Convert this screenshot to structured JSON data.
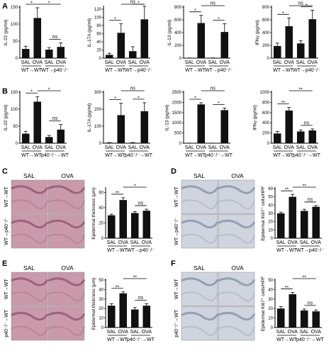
{
  "colors": {
    "bar": "#111111",
    "axis": "#000000",
    "tissue_he": "#c99aaa",
    "tissue_ihc": "#cfd4de"
  },
  "charts": [
    {
      "id": "a1",
      "panel": "A",
      "ylabel": "IL-22 (pg/ml)",
      "yticks": [
        "0",
        "50",
        "100",
        "150"
      ],
      "ymax": 150,
      "categories": [
        "SAL",
        "OVA",
        "SAL",
        "OVA"
      ],
      "values": [
        27,
        118,
        25,
        33
      ],
      "errors": [
        8,
        30,
        6,
        12
      ],
      "groups": [
        "WT→WT",
        "WT→p40⁻/⁻"
      ],
      "sig": [
        {
          "a": 0,
          "b": 1,
          "text": "*"
        },
        {
          "a": 1,
          "b": 3,
          "text": "*"
        },
        {
          "a": 2,
          "b": 3,
          "text": "ns"
        }
      ]
    },
    {
      "id": "a2",
      "ylabel": "IL-17A (pg/ml)",
      "yticks": [
        "0",
        "20",
        "40",
        "60",
        "80",
        "100",
        "120"
      ],
      "ymax": 125,
      "categories": [
        "SAL",
        "OVA",
        "SAL",
        "OVA"
      ],
      "values": [
        8,
        62,
        17,
        95
      ],
      "errors": [
        4,
        22,
        11,
        32
      ],
      "groups": [
        "WT→WT",
        "WT→p40⁻/⁻"
      ],
      "sig": [
        {
          "a": 0,
          "b": 1,
          "text": "*"
        },
        {
          "a": 2,
          "b": 3,
          "text": "*"
        },
        {
          "a": 1,
          "b": 3,
          "text": "ns"
        }
      ]
    },
    {
      "id": "a3",
      "ylabel": "IL-13 (pg/ml)",
      "yticks": [
        "0",
        "200",
        "400",
        "600",
        "800"
      ],
      "ymax": 800,
      "categories": [
        "SAL",
        "OVA",
        "SAL",
        "OVA"
      ],
      "values": [
        2,
        550,
        3,
        410
      ],
      "errors": [
        1,
        120,
        1,
        130
      ],
      "groups": [
        "WT→WT",
        "WT→p40⁻/⁻"
      ],
      "sig": [
        {
          "a": 0,
          "b": 1,
          "text": "*"
        },
        {
          "a": 2,
          "b": 3,
          "text": "*"
        },
        {
          "a": 1,
          "b": 3,
          "text": "ns"
        }
      ]
    },
    {
      "id": "a4",
      "ylabel": "IFNγ (pg/ml)",
      "yticks": [
        "0",
        "200",
        "400",
        "600",
        "800"
      ],
      "ymax": 800,
      "categories": [
        "SAL",
        "OVA",
        "SAL",
        "OVA"
      ],
      "values": [
        190,
        500,
        230,
        610
      ],
      "errors": [
        45,
        130,
        45,
        140
      ],
      "groups": [
        "WT→WT",
        "WT→p40⁻/⁻"
      ],
      "sig": [
        {
          "a": 0,
          "b": 1,
          "text": "*"
        },
        {
          "a": 2,
          "b": 3,
          "text": "*"
        },
        {
          "a": 1,
          "b": 3,
          "text": "ns"
        }
      ]
    },
    {
      "id": "b1",
      "panel": "B",
      "ylabel": "IL-22 (pg/ml)",
      "yticks": [
        "0",
        "50",
        "100",
        "150"
      ],
      "ymax": 150,
      "categories": [
        "SAL",
        "OVA",
        "SAL",
        "OVA"
      ],
      "values": [
        28,
        122,
        18,
        40
      ],
      "errors": [
        7,
        15,
        5,
        15
      ],
      "groups": [
        "WT→WT",
        "p40⁻/⁻→WT"
      ],
      "sig": [
        {
          "a": 0,
          "b": 1,
          "text": "*"
        },
        {
          "a": 1,
          "b": 3,
          "text": "*"
        },
        {
          "a": 2,
          "b": 3,
          "text": "ns"
        }
      ]
    },
    {
      "id": "b2",
      "ylabel": "IL-17A (pg/ml)",
      "yticks": [
        "0",
        "100",
        "200",
        "300"
      ],
      "ymax": 300,
      "categories": [
        "SAL",
        "OVA",
        "SAL",
        "OVA"
      ],
      "values": [
        3,
        165,
        3,
        188
      ],
      "errors": [
        1,
        70,
        1,
        50
      ],
      "groups": [
        "WT→WT",
        "p40⁻/⁻→WT"
      ],
      "sig": [
        {
          "a": 0,
          "b": 1,
          "text": "*"
        },
        {
          "a": 2,
          "b": 3,
          "text": "*"
        },
        {
          "a": 1,
          "b": 3,
          "text": "ns"
        }
      ]
    },
    {
      "id": "b3",
      "ylabel": "IL-13 (pg/ml)",
      "yticks": [
        "0",
        "500",
        "1000",
        "1500",
        "2000",
        "2500"
      ],
      "ymax": 2500,
      "categories": [
        "SAL",
        "OVA",
        "SAL",
        "OVA"
      ],
      "values": [
        5,
        1900,
        5,
        1620
      ],
      "errors": [
        2,
        80,
        2,
        100
      ],
      "groups": [
        "WT→WT",
        "p40⁻/⁻→WT"
      ],
      "sig": [
        {
          "a": 0,
          "b": 1,
          "text": "*"
        },
        {
          "a": 2,
          "b": 3,
          "text": "*"
        },
        {
          "a": 1,
          "b": 3,
          "text": "ns"
        }
      ]
    },
    {
      "id": "b4",
      "ylabel": "IFNγ (pg/ml)",
      "yticks": [
        "0",
        "200",
        "400",
        "600",
        "800",
        "1000"
      ],
      "ymax": 1000,
      "categories": [
        "SAL",
        "OVA",
        "SAL",
        "OVA"
      ],
      "values": [
        190,
        640,
        230,
        250
      ],
      "errors": [
        40,
        60,
        30,
        30
      ],
      "groups": [
        "WT→WT",
        "p40⁻/⁻→WT"
      ],
      "sig": [
        {
          "a": 0,
          "b": 1,
          "text": "**"
        },
        {
          "a": 1,
          "b": 3,
          "text": "**"
        },
        {
          "a": 2,
          "b": 3,
          "text": "ns"
        }
      ]
    },
    {
      "id": "c",
      "ylabel": "Epidermal thickness (μm)",
      "yticks": [
        "0",
        "20",
        "40",
        "60"
      ],
      "ymax": 65,
      "categories": [
        "SAL",
        "OVA",
        "SAL",
        "OVA"
      ],
      "values": [
        30,
        50,
        33,
        36
      ],
      "errors": [
        1.5,
        3,
        2,
        2
      ],
      "groups": [
        "WT→WT",
        "WT→p40⁻/⁻"
      ],
      "sig": [
        {
          "a": 0,
          "b": 1,
          "text": "**"
        },
        {
          "a": 1,
          "b": 3,
          "text": "*"
        },
        {
          "a": 2,
          "b": 3,
          "text": "ns"
        }
      ]
    },
    {
      "id": "d",
      "ylabel": "Epidermal Ki67⁺ cells/HPF",
      "yticks": [
        "0",
        "10",
        "20",
        "30",
        "40",
        "50",
        "60"
      ],
      "ymax": 60,
      "categories": [
        "SAL",
        "OVA",
        "SAL",
        "OVA"
      ],
      "values": [
        30,
        50,
        33,
        38
      ],
      "errors": [
        1.5,
        3,
        2,
        1.5
      ],
      "groups": [
        "WT→WT",
        "WT→p40⁻/⁻"
      ],
      "sig": [
        {
          "a": 0,
          "b": 1,
          "text": "**"
        },
        {
          "a": 1,
          "b": 3,
          "text": "**"
        },
        {
          "a": 2,
          "b": 3,
          "text": "ns"
        }
      ]
    },
    {
      "id": "e",
      "ylabel": "Epidermal thickness (μm)",
      "yticks": [
        "0",
        "10",
        "20",
        "30",
        "40",
        "50"
      ],
      "ymax": 50,
      "categories": [
        "SAL",
        "OVA",
        "SAL",
        "OVA"
      ],
      "values": [
        23,
        36,
        19,
        23
      ],
      "errors": [
        2,
        1.5,
        2,
        2
      ],
      "groups": [
        "WT→WT",
        "p40⁻/⁻→WT"
      ],
      "sig": [
        {
          "a": 0,
          "b": 1,
          "text": "**"
        },
        {
          "a": 1,
          "b": 3,
          "text": "**"
        },
        {
          "a": 2,
          "b": 3,
          "text": "ns"
        }
      ]
    },
    {
      "id": "f",
      "ylabel": "Epidermal Ki67⁺ cells/HPF",
      "yticks": [
        "0",
        "10",
        "20",
        "30",
        "40",
        "50"
      ],
      "ymax": 50,
      "categories": [
        "SAL",
        "OVA",
        "SAL",
        "OVA"
      ],
      "values": [
        20,
        35,
        18,
        17
      ],
      "errors": [
        2,
        2,
        1.5,
        1.5
      ],
      "groups": [
        "WT→WT",
        "p40⁻/⁻→WT"
      ],
      "sig": [
        {
          "a": 0,
          "b": 1,
          "text": "**"
        },
        {
          "a": 1,
          "b": 3,
          "text": "**"
        },
        {
          "a": 2,
          "b": 3,
          "text": "ns"
        }
      ]
    }
  ],
  "images": [
    {
      "id": "c",
      "panel": "C",
      "col1": "SAL",
      "col2": "OVA",
      "row1": "WT→WT",
      "row2": "WT→p40⁻/⁻",
      "stain": "tissue_he"
    },
    {
      "id": "d",
      "panel": "D",
      "col1": "SAL",
      "col2": "OVA",
      "row1": "WT→WT",
      "row2": "WT→p40⁻/⁻",
      "stain": "tissue_ihc"
    },
    {
      "id": "e",
      "panel": "E",
      "col1": "SAL",
      "col2": "OVA",
      "row1": "WT→WT",
      "row2": "p40⁻/⁻→WT",
      "stain": "tissue_he"
    },
    {
      "id": "f",
      "panel": "F",
      "col1": "SAL",
      "col2": "OVA",
      "row1": "WT→WT",
      "row2": "p40⁻/⁻→WT",
      "stain": "tissue_ihc"
    }
  ]
}
